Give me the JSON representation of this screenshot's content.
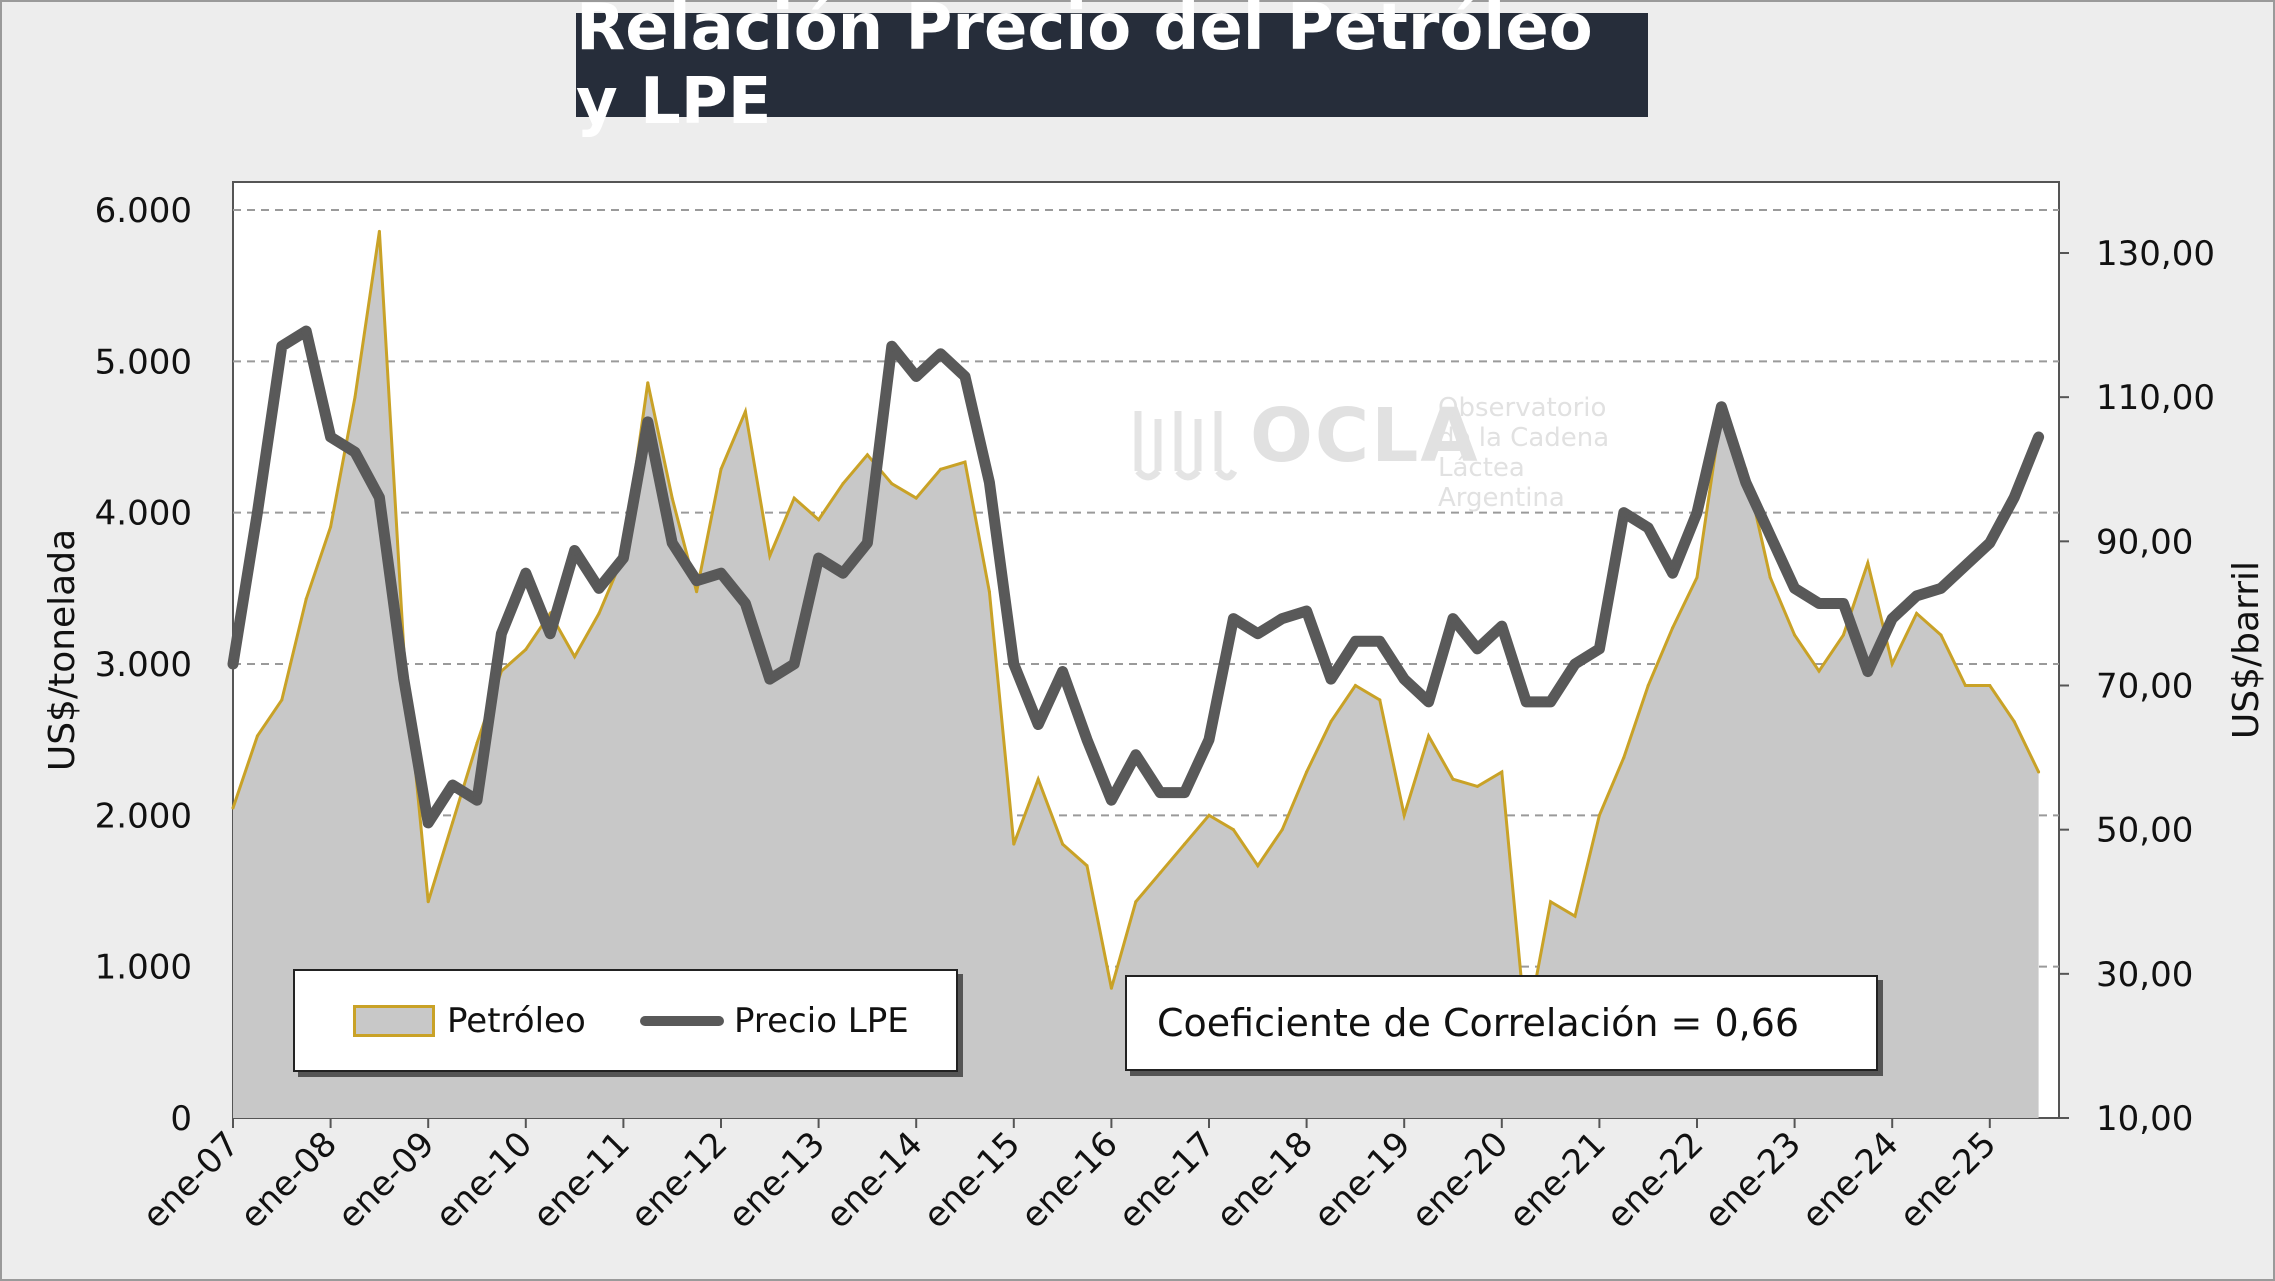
{
  "title": "Relación Precio del Petróleo y LPE",
  "legend": {
    "oil": "Petróleo",
    "lpe": "Precio LPE"
  },
  "correlation_label": "Coeficiente de Correlación = 0,66",
  "watermark": {
    "name": "OCLA",
    "line1": "Observatorio",
    "line2": "de la Cadena Láctea",
    "line3": "Argentina"
  },
  "colors": {
    "oil_line": "#c9a227",
    "oil_fill": "#c8c8c8",
    "lpe_line": "#595959",
    "title_bg": "#262d3a"
  },
  "chart_data": {
    "type": "line",
    "title": "Relación Precio del Petróleo y LPE",
    "ylabel_left": "US$/tonelada",
    "ylabel_right": "US$/barril",
    "y_left_range": [
      0,
      6000
    ],
    "y_right_range": [
      10,
      130
    ],
    "y_left_ticks": [
      "0",
      "1.000",
      "2.000",
      "3.000",
      "4.000",
      "5.000",
      "6.000"
    ],
    "y_right_ticks": [
      "10,00",
      "30,00",
      "50,00",
      "70,00",
      "90,00",
      "110,00",
      "130,00"
    ],
    "x_ticks": [
      "ene-07",
      "ene-08",
      "ene-09",
      "ene-10",
      "ene-11",
      "ene-12",
      "ene-13",
      "ene-14",
      "ene-15",
      "ene-16",
      "ene-17",
      "ene-18",
      "ene-19",
      "ene-20",
      "ene-21",
      "ene-22",
      "ene-23",
      "ene-24",
      "ene-25"
    ],
    "grid": "horizontal dashed",
    "legend_position": "bottom-left",
    "series": [
      {
        "name": "Precio LPE",
        "axis": "left",
        "unit": "US$/tonelada",
        "x": [
          "ene-07",
          "abr-07",
          "jul-07",
          "oct-07",
          "ene-08",
          "abr-08",
          "jul-08",
          "oct-08",
          "ene-09",
          "abr-09",
          "jul-09",
          "oct-09",
          "ene-10",
          "abr-10",
          "jul-10",
          "oct-10",
          "ene-11",
          "abr-11",
          "jul-11",
          "oct-11",
          "ene-12",
          "abr-12",
          "jul-12",
          "oct-12",
          "ene-13",
          "abr-13",
          "jul-13",
          "oct-13",
          "ene-14",
          "abr-14",
          "jul-14",
          "oct-14",
          "ene-15",
          "abr-15",
          "jul-15",
          "oct-15",
          "ene-16",
          "abr-16",
          "jul-16",
          "oct-16",
          "ene-17",
          "abr-17",
          "jul-17",
          "oct-17",
          "ene-18",
          "abr-18",
          "jul-18",
          "oct-18",
          "ene-19",
          "abr-19",
          "jul-19",
          "oct-19",
          "ene-20",
          "abr-20",
          "jul-20",
          "oct-20",
          "ene-21",
          "abr-21",
          "jul-21",
          "oct-21",
          "ene-22",
          "abr-22",
          "jul-22",
          "oct-22",
          "ene-23",
          "abr-23",
          "jul-23",
          "oct-23",
          "ene-24",
          "abr-24",
          "jul-24",
          "oct-24",
          "ene-25",
          "abr-25",
          "jul-25"
        ],
        "values": [
          3000,
          4000,
          5100,
          5200,
          4500,
          4400,
          4100,
          2900,
          1950,
          2200,
          2100,
          3200,
          3600,
          3200,
          3750,
          3500,
          3700,
          4600,
          3800,
          3550,
          3600,
          3400,
          2900,
          3000,
          3700,
          3600,
          3800,
          5100,
          4900,
          5050,
          4900,
          4200,
          3000,
          2600,
          2950,
          2500,
          2100,
          2400,
          2150,
          2150,
          2500,
          3300,
          3200,
          3300,
          3350,
          2900,
          3150,
          3150,
          2900,
          2750,
          3300,
          3100,
          3250,
          2750,
          2750,
          3000,
          3100,
          4000,
          3900,
          3600,
          4000,
          4700,
          4200,
          3850,
          3500,
          3400,
          3400,
          2950,
          3300,
          3450,
          3500,
          3650,
          3800,
          4100,
          4500
        ]
      },
      {
        "name": "Petróleo",
        "axis": "right",
        "unit": "US$/barril",
        "x": [
          "ene-07",
          "abr-07",
          "jul-07",
          "oct-07",
          "ene-08",
          "abr-08",
          "jul-08",
          "oct-08",
          "ene-09",
          "abr-09",
          "jul-09",
          "oct-09",
          "ene-10",
          "abr-10",
          "jul-10",
          "oct-10",
          "ene-11",
          "abr-11",
          "jul-11",
          "oct-11",
          "ene-12",
          "abr-12",
          "jul-12",
          "oct-12",
          "ene-13",
          "abr-13",
          "jul-13",
          "oct-13",
          "ene-14",
          "abr-14",
          "jul-14",
          "oct-14",
          "ene-15",
          "abr-15",
          "jul-15",
          "oct-15",
          "ene-16",
          "abr-16",
          "jul-16",
          "oct-16",
          "ene-17",
          "abr-17",
          "jul-17",
          "oct-17",
          "ene-18",
          "abr-18",
          "jul-18",
          "oct-18",
          "ene-19",
          "abr-19",
          "jul-19",
          "oct-19",
          "ene-20",
          "abr-20",
          "jul-20",
          "oct-20",
          "ene-21",
          "abr-21",
          "jul-21",
          "oct-21",
          "ene-22",
          "abr-22",
          "jul-22",
          "oct-22",
          "ene-23",
          "abr-23",
          "jul-23",
          "oct-23",
          "ene-24",
          "abr-24",
          "jul-24",
          "oct-24",
          "ene-25",
          "abr-25",
          "jul-25"
        ],
        "values": [
          53,
          63,
          68,
          82,
          92,
          110,
          133,
          75,
          40,
          51,
          62,
          72,
          75,
          80,
          74,
          80,
          88,
          112,
          96,
          83,
          100,
          108,
          88,
          96,
          93,
          98,
          102,
          98,
          96,
          100,
          101,
          83,
          48,
          57,
          48,
          45,
          28,
          40,
          44,
          48,
          52,
          50,
          45,
          50,
          58,
          65,
          70,
          68,
          52,
          63,
          57,
          56,
          58,
          22,
          40,
          38,
          52,
          60,
          70,
          78,
          85,
          108,
          100,
          85,
          77,
          72,
          77,
          87,
          73,
          80,
          77,
          70,
          70,
          65,
          58
        ]
      }
    ]
  }
}
